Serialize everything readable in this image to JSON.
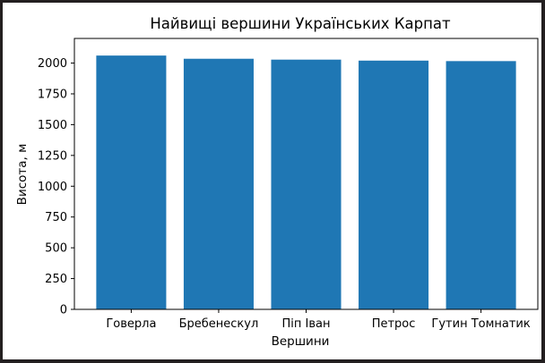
{
  "chart_data": {
    "type": "bar",
    "title": "Найвищі вершини Українських Карпат",
    "xlabel": "Вершини",
    "ylabel": "Висота, м",
    "categories": [
      "Говерла",
      "Бребенескул",
      "Піп Іван",
      "Петрос",
      "Гутин Томнатик"
    ],
    "values": [
      2061,
      2035,
      2028,
      2020,
      2016
    ],
    "ylim": [
      0,
      2200
    ],
    "yticks": [
      0,
      250,
      500,
      750,
      1000,
      1250,
      1500,
      1750,
      2000
    ],
    "grid": false,
    "bar_color": "#1f77b4"
  }
}
